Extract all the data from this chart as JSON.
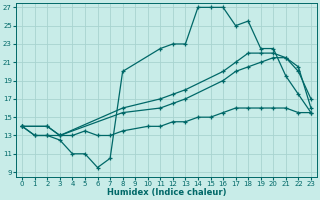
{
  "xlabel": "Humidex (Indice chaleur)",
  "bg_color": "#c8ece8",
  "grid_color": "#a8d4d0",
  "line_color": "#006868",
  "xlim": [
    -0.5,
    23.5
  ],
  "ylim": [
    8.5,
    27.5
  ],
  "xticks": [
    0,
    1,
    2,
    3,
    4,
    5,
    6,
    7,
    8,
    9,
    10,
    11,
    12,
    13,
    14,
    15,
    16,
    17,
    18,
    19,
    20,
    21,
    22,
    23
  ],
  "yticks": [
    9,
    11,
    13,
    15,
    17,
    19,
    21,
    23,
    25,
    27
  ],
  "lines": [
    {
      "x": [
        0,
        1,
        2,
        3,
        4,
        5,
        6,
        7,
        8,
        11,
        12,
        13,
        14,
        15,
        16,
        17,
        18,
        19,
        20,
        21,
        22,
        23
      ],
      "y": [
        14,
        13,
        13,
        12.5,
        11,
        11,
        9.5,
        10.5,
        20,
        22.5,
        23,
        23,
        27,
        27,
        27,
        25,
        25.5,
        22.5,
        22.5,
        19.5,
        17.5,
        15.5
      ]
    },
    {
      "x": [
        0,
        2,
        3,
        8,
        11,
        12,
        13,
        16,
        17,
        18,
        19,
        20,
        21,
        22,
        23
      ],
      "y": [
        14,
        14,
        13,
        16,
        17,
        17.5,
        18,
        20,
        21,
        22,
        22,
        22,
        21.5,
        20,
        17
      ]
    },
    {
      "x": [
        0,
        2,
        3,
        8,
        11,
        12,
        13,
        16,
        17,
        18,
        19,
        20,
        21,
        22,
        23
      ],
      "y": [
        14,
        14,
        13,
        15.5,
        16,
        16.5,
        17,
        19,
        20,
        20.5,
        21,
        21.5,
        21.5,
        20.5,
        16
      ]
    },
    {
      "x": [
        0,
        1,
        2,
        3,
        4,
        5,
        6,
        7,
        8,
        10,
        11,
        12,
        13,
        14,
        15,
        16,
        17,
        18,
        19,
        20,
        21,
        22,
        23
      ],
      "y": [
        14,
        13,
        13,
        13,
        13,
        13.5,
        13,
        13,
        13.5,
        14,
        14,
        14.5,
        14.5,
        15,
        15,
        15.5,
        16,
        16,
        16,
        16,
        16,
        15.5,
        15.5
      ]
    }
  ]
}
